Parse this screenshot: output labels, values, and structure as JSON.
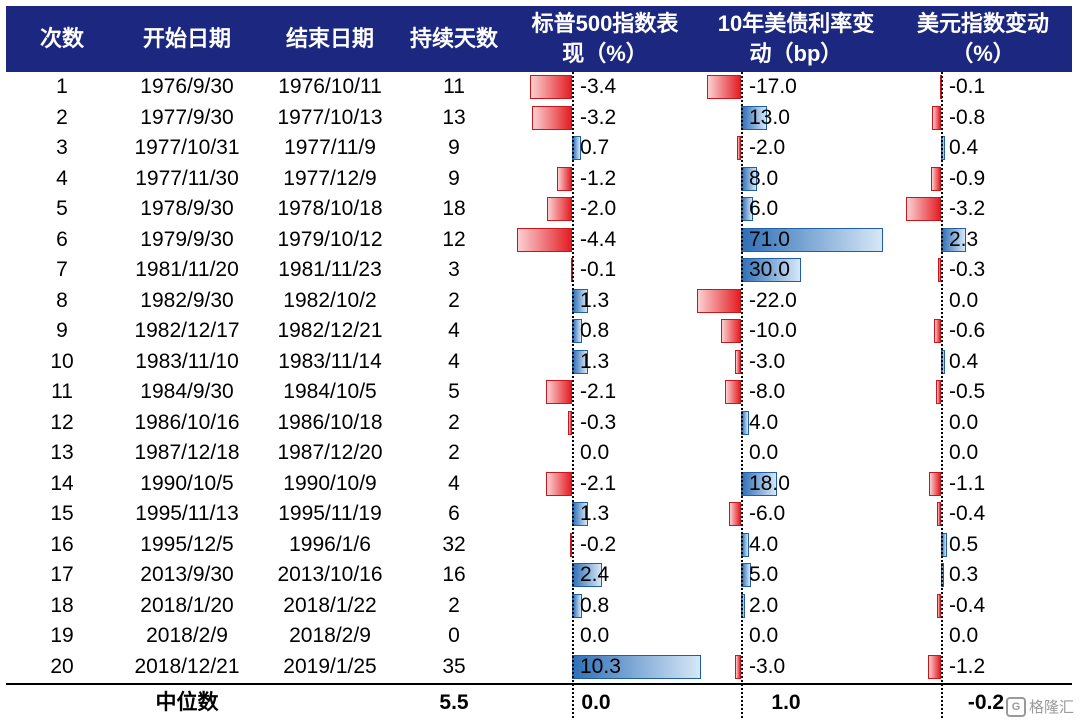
{
  "headers": {
    "count": "次数",
    "start": "开始日期",
    "end": "结束日期",
    "days": "持续天数",
    "sp500": [
      "标普500指数表",
      "现（%）"
    ],
    "ust10": [
      "10年美债利率变",
      "动（bp）"
    ],
    "dxy": [
      "美元指数变动",
      "（%）"
    ]
  },
  "rows": [
    {
      "n": "1",
      "start": "1976/9/30",
      "end": "1976/10/11",
      "days": "11",
      "sp500": -3.4,
      "sp500_label": "-3.4",
      "ust10": -17.0,
      "ust10_label": "-17.0",
      "dxy": -0.1,
      "dxy_label": "-0.1"
    },
    {
      "n": "2",
      "start": "1977/9/30",
      "end": "1977/10/13",
      "days": "13",
      "sp500": -3.2,
      "sp500_label": "-3.2",
      "ust10": 13.0,
      "ust10_label": "13.0",
      "dxy": -0.8,
      "dxy_label": "-0.8"
    },
    {
      "n": "3",
      "start": "1977/10/31",
      "end": "1977/11/9",
      "days": "9",
      "sp500": 0.7,
      "sp500_label": "0.7",
      "ust10": -2.0,
      "ust10_label": "-2.0",
      "dxy": 0.4,
      "dxy_label": "0.4"
    },
    {
      "n": "4",
      "start": "1977/11/30",
      "end": "1977/12/9",
      "days": "9",
      "sp500": -1.2,
      "sp500_label": "-1.2",
      "ust10": 8.0,
      "ust10_label": "8.0",
      "dxy": -0.9,
      "dxy_label": "-0.9"
    },
    {
      "n": "5",
      "start": "1978/9/30",
      "end": "1978/10/18",
      "days": "18",
      "sp500": -2.0,
      "sp500_label": "-2.0",
      "ust10": 6.0,
      "ust10_label": "6.0",
      "dxy": -3.2,
      "dxy_label": "-3.2"
    },
    {
      "n": "6",
      "start": "1979/9/30",
      "end": "1979/10/12",
      "days": "12",
      "sp500": -4.4,
      "sp500_label": "-4.4",
      "ust10": 71.0,
      "ust10_label": "71.0",
      "dxy": 2.3,
      "dxy_label": "2.3"
    },
    {
      "n": "7",
      "start": "1981/11/20",
      "end": "1981/11/23",
      "days": "3",
      "sp500": -0.1,
      "sp500_label": "-0.1",
      "ust10": 30.0,
      "ust10_label": "30.0",
      "dxy": -0.3,
      "dxy_label": "-0.3"
    },
    {
      "n": "8",
      "start": "1982/9/30",
      "end": "1982/10/2",
      "days": "2",
      "sp500": 1.3,
      "sp500_label": "1.3",
      "ust10": -22.0,
      "ust10_label": "-22.0",
      "dxy": 0.0,
      "dxy_label": "0.0"
    },
    {
      "n": "9",
      "start": "1982/12/17",
      "end": "1982/12/21",
      "days": "4",
      "sp500": 0.8,
      "sp500_label": "0.8",
      "ust10": -10.0,
      "ust10_label": "-10.0",
      "dxy": -0.6,
      "dxy_label": "-0.6"
    },
    {
      "n": "10",
      "start": "1983/11/10",
      "end": "1983/11/14",
      "days": "4",
      "sp500": 1.3,
      "sp500_label": "1.3",
      "ust10": -3.0,
      "ust10_label": "-3.0",
      "dxy": 0.4,
      "dxy_label": "0.4"
    },
    {
      "n": "11",
      "start": "1984/9/30",
      "end": "1984/10/5",
      "days": "5",
      "sp500": -2.1,
      "sp500_label": "-2.1",
      "ust10": -8.0,
      "ust10_label": "-8.0",
      "dxy": -0.5,
      "dxy_label": "-0.5"
    },
    {
      "n": "12",
      "start": "1986/10/16",
      "end": "1986/10/18",
      "days": "2",
      "sp500": -0.3,
      "sp500_label": "-0.3",
      "ust10": 4.0,
      "ust10_label": "4.0",
      "dxy": 0.0,
      "dxy_label": "0.0"
    },
    {
      "n": "13",
      "start": "1987/12/18",
      "end": "1987/12/20",
      "days": "2",
      "sp500": 0.0,
      "sp500_label": "0.0",
      "ust10": 0.0,
      "ust10_label": "0.0",
      "dxy": 0.0,
      "dxy_label": "0.0"
    },
    {
      "n": "14",
      "start": "1990/10/5",
      "end": "1990/10/9",
      "days": "4",
      "sp500": -2.1,
      "sp500_label": "-2.1",
      "ust10": 18.0,
      "ust10_label": "18.0",
      "dxy": -1.1,
      "dxy_label": "-1.1"
    },
    {
      "n": "15",
      "start": "1995/11/13",
      "end": "1995/11/19",
      "days": "6",
      "sp500": 1.3,
      "sp500_label": "1.3",
      "ust10": -6.0,
      "ust10_label": "-6.0",
      "dxy": -0.4,
      "dxy_label": "-0.4"
    },
    {
      "n": "16",
      "start": "1995/12/5",
      "end": "1996/1/6",
      "days": "32",
      "sp500": -0.2,
      "sp500_label": "-0.2",
      "ust10": 4.0,
      "ust10_label": "4.0",
      "dxy": 0.5,
      "dxy_label": "0.5"
    },
    {
      "n": "17",
      "start": "2013/9/30",
      "end": "2013/10/16",
      "days": "16",
      "sp500": 2.4,
      "sp500_label": "2.4",
      "ust10": 5.0,
      "ust10_label": "5.0",
      "dxy": 0.3,
      "dxy_label": "0.3"
    },
    {
      "n": "18",
      "start": "2018/1/20",
      "end": "2018/1/22",
      "days": "2",
      "sp500": 0.8,
      "sp500_label": "0.8",
      "ust10": 2.0,
      "ust10_label": "2.0",
      "dxy": -0.4,
      "dxy_label": "-0.4"
    },
    {
      "n": "19",
      "start": "2018/2/9",
      "end": "2018/2/9",
      "days": "0",
      "sp500": 0.0,
      "sp500_label": "0.0",
      "ust10": 0.0,
      "ust10_label": "0.0",
      "dxy": 0.0,
      "dxy_label": "0.0"
    },
    {
      "n": "20",
      "start": "2018/12/21",
      "end": "2019/1/25",
      "days": "35",
      "sp500": 10.3,
      "sp500_label": "10.3",
      "ust10": -3.0,
      "ust10_label": "-3.0",
      "dxy": -1.2,
      "dxy_label": "-1.2"
    }
  ],
  "footer": {
    "label": "中位数",
    "days": "5.5",
    "sp500": "0.0",
    "ust10": "1.0",
    "dxy": "-0.2"
  },
  "colors": {
    "header_bg": "#1c2880",
    "positive_bar": "#2f6fb6",
    "negative_bar": "#e31e24"
  },
  "watermark": "格隆汇"
}
